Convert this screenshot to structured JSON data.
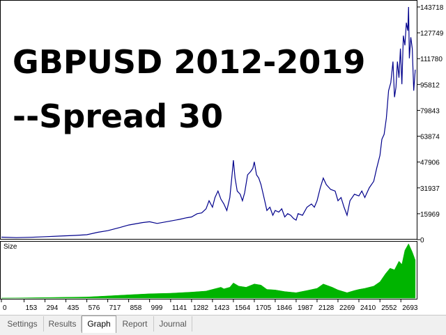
{
  "overlay": {
    "line1": "GBPUSD 2012-2019",
    "line2": "--Spread 30"
  },
  "colors": {
    "balance_line": "#00008b",
    "size_bars": "#00b400",
    "axis": "#000000",
    "grid_bg": "#ffffff"
  },
  "chart_data": [
    {
      "type": "line",
      "name": "balance",
      "y_ticks": [
        "143718",
        "127749",
        "111780",
        "95812",
        "79843",
        "63874",
        "47906",
        "31937",
        "15969",
        "0"
      ],
      "y_tick_values": [
        143718,
        127749,
        111780,
        95812,
        79843,
        63874,
        47906,
        31937,
        15969,
        0
      ],
      "ylim": [
        0,
        143718
      ],
      "xlim": [
        0,
        2800
      ],
      "points": [
        [
          0,
          1500
        ],
        [
          100,
          1200
        ],
        [
          200,
          1400
        ],
        [
          300,
          1800
        ],
        [
          400,
          2200
        ],
        [
          500,
          2600
        ],
        [
          576,
          3000
        ],
        [
          650,
          4500
        ],
        [
          717,
          5500
        ],
        [
          800,
          7500
        ],
        [
          858,
          9000
        ],
        [
          950,
          10500
        ],
        [
          999,
          11000
        ],
        [
          1050,
          10000
        ],
        [
          1141,
          11500
        ],
        [
          1200,
          12500
        ],
        [
          1250,
          13500
        ],
        [
          1282,
          14000
        ],
        [
          1320,
          16000
        ],
        [
          1350,
          16500
        ],
        [
          1380,
          19000
        ],
        [
          1400,
          24000
        ],
        [
          1423,
          20000
        ],
        [
          1440,
          26000
        ],
        [
          1460,
          30000
        ],
        [
          1480,
          25000
        ],
        [
          1500,
          22000
        ],
        [
          1520,
          18000
        ],
        [
          1540,
          26000
        ],
        [
          1555,
          40000
        ],
        [
          1564,
          49000
        ],
        [
          1575,
          38000
        ],
        [
          1590,
          30000
        ],
        [
          1610,
          28000
        ],
        [
          1625,
          24000
        ],
        [
          1640,
          29000
        ],
        [
          1660,
          40000
        ],
        [
          1680,
          42000
        ],
        [
          1695,
          44000
        ],
        [
          1705,
          48000
        ],
        [
          1720,
          40000
        ],
        [
          1735,
          38000
        ],
        [
          1750,
          34000
        ],
        [
          1770,
          26000
        ],
        [
          1790,
          18000
        ],
        [
          1810,
          20000
        ],
        [
          1830,
          15000
        ],
        [
          1846,
          18000
        ],
        [
          1870,
          17000
        ],
        [
          1890,
          19000
        ],
        [
          1910,
          14000
        ],
        [
          1930,
          16000
        ],
        [
          1950,
          15000
        ],
        [
          1970,
          13000
        ],
        [
          1987,
          12000
        ],
        [
          2000,
          16000
        ],
        [
          2030,
          15000
        ],
        [
          2060,
          20000
        ],
        [
          2090,
          22000
        ],
        [
          2110,
          20000
        ],
        [
          2128,
          24000
        ],
        [
          2150,
          32000
        ],
        [
          2170,
          38000
        ],
        [
          2190,
          34000
        ],
        [
          2220,
          31000
        ],
        [
          2250,
          30000
        ],
        [
          2269,
          24000
        ],
        [
          2290,
          26000
        ],
        [
          2310,
          20000
        ],
        [
          2330,
          15000
        ],
        [
          2350,
          24000
        ],
        [
          2380,
          28000
        ],
        [
          2410,
          27000
        ],
        [
          2430,
          30000
        ],
        [
          2450,
          26000
        ],
        [
          2480,
          32000
        ],
        [
          2510,
          36000
        ],
        [
          2530,
          44000
        ],
        [
          2552,
          52000
        ],
        [
          2565,
          62000
        ],
        [
          2580,
          65000
        ],
        [
          2595,
          75000
        ],
        [
          2610,
          92000
        ],
        [
          2625,
          97000
        ],
        [
          2640,
          110000
        ],
        [
          2650,
          88000
        ],
        [
          2660,
          94000
        ],
        [
          2670,
          110000
        ],
        [
          2680,
          100000
        ],
        [
          2690,
          118000
        ],
        [
          2700,
          96000
        ],
        [
          2710,
          126000
        ],
        [
          2720,
          120000
        ],
        [
          2730,
          134000
        ],
        [
          2740,
          129000
        ],
        [
          2745,
          143718
        ],
        [
          2750,
          112000
        ],
        [
          2760,
          125000
        ],
        [
          2770,
          118000
        ],
        [
          2780,
          92000
        ],
        [
          2790,
          105000
        ]
      ]
    },
    {
      "type": "area",
      "name": "size",
      "label": "Size",
      "x_ticks": [
        "0",
        "153",
        "294",
        "435",
        "576",
        "717",
        "858",
        "999",
        "1141",
        "1282",
        "1423",
        "1564",
        "1705",
        "1846",
        "1987",
        "2128",
        "2269",
        "2410",
        "2552",
        "2693"
      ],
      "x_tick_values": [
        0,
        153,
        294,
        435,
        576,
        717,
        858,
        999,
        1141,
        1282,
        1423,
        1564,
        1705,
        1846,
        1987,
        2128,
        2269,
        2410,
        2552,
        2693
      ],
      "xlim": [
        0,
        2800
      ],
      "ylim": [
        0,
        100
      ],
      "points": [
        [
          0,
          0
        ],
        [
          300,
          1
        ],
        [
          576,
          2
        ],
        [
          717,
          4
        ],
        [
          858,
          6
        ],
        [
          999,
          8
        ],
        [
          1141,
          9
        ],
        [
          1282,
          11
        ],
        [
          1380,
          13
        ],
        [
          1423,
          16
        ],
        [
          1480,
          20
        ],
        [
          1500,
          17
        ],
        [
          1540,
          20
        ],
        [
          1564,
          28
        ],
        [
          1600,
          22
        ],
        [
          1650,
          20
        ],
        [
          1705,
          26
        ],
        [
          1750,
          24
        ],
        [
          1790,
          16
        ],
        [
          1846,
          15
        ],
        [
          1910,
          12
        ],
        [
          1987,
          10
        ],
        [
          2060,
          14
        ],
        [
          2128,
          18
        ],
        [
          2170,
          26
        ],
        [
          2230,
          20
        ],
        [
          2269,
          15
        ],
        [
          2330,
          10
        ],
        [
          2380,
          14
        ],
        [
          2410,
          16
        ],
        [
          2450,
          18
        ],
        [
          2510,
          22
        ],
        [
          2552,
          30
        ],
        [
          2590,
          45
        ],
        [
          2620,
          55
        ],
        [
          2650,
          52
        ],
        [
          2680,
          68
        ],
        [
          2700,
          62
        ],
        [
          2720,
          88
        ],
        [
          2745,
          100
        ],
        [
          2770,
          85
        ],
        [
          2790,
          70
        ]
      ]
    }
  ],
  "tabs": [
    {
      "label": "Settings",
      "active": false
    },
    {
      "label": "Results",
      "active": false
    },
    {
      "label": "Graph",
      "active": true
    },
    {
      "label": "Report",
      "active": false
    },
    {
      "label": "Journal",
      "active": false
    }
  ]
}
